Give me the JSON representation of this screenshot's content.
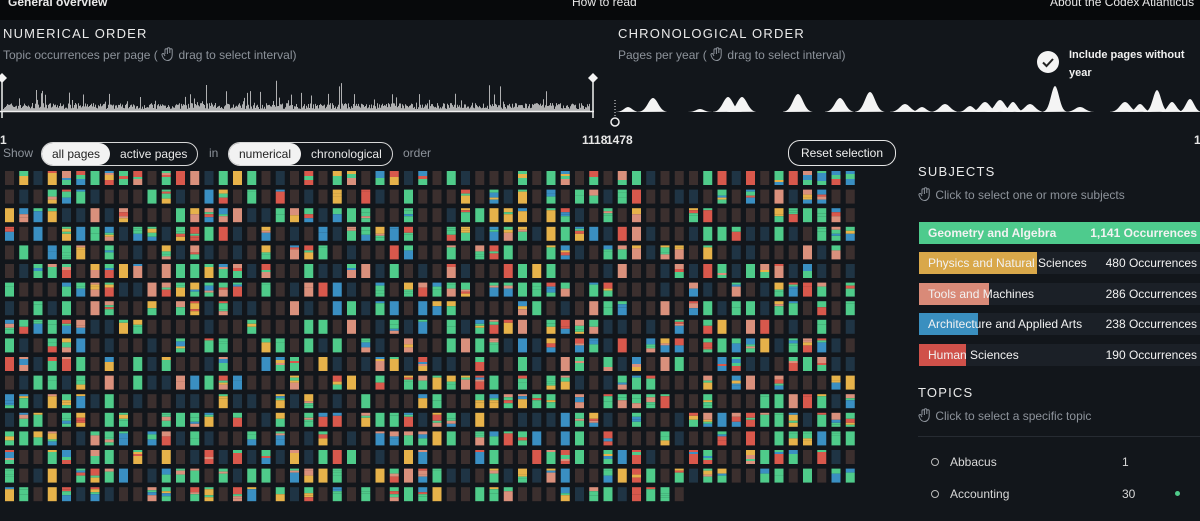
{
  "nav": {
    "items": [
      "General overview",
      "How to read",
      "About the Codex Atlanticus"
    ]
  },
  "numerical": {
    "title": "NUMERICAL ORDER",
    "hint_prefix": "Topic occurrences per page (",
    "hint": "drag to select interval)",
    "range_start": "1",
    "range_end": "1118"
  },
  "chronological": {
    "title": "CHRONOLOGICAL ORDER",
    "hint_prefix": "Pages per year (",
    "hint": "drag to select interval)",
    "range_start": "1478",
    "range_end": "1",
    "include_label": "Include pages without year"
  },
  "controls": {
    "show": "Show",
    "show_options": [
      "all pages",
      "active pages"
    ],
    "in": "in",
    "order_options": [
      "numerical",
      "chronological"
    ],
    "order": "order",
    "reset": "Reset selection"
  },
  "subjects": {
    "title": "SUBJECTS",
    "hint": "Click to select one or more subjects",
    "items": [
      {
        "name": "Geometry and Algebra",
        "occurrences": 1141,
        "label": "1,141 Occurrences",
        "color": "#4ecb8d"
      },
      {
        "name": "Physics and Natural Sciences",
        "occurrences": 480,
        "label": "480 Occurrences",
        "color": "#d9a84a"
      },
      {
        "name": "Tools and Machines",
        "occurrences": 286,
        "label": "286 Occurrences",
        "color": "#d98a78"
      },
      {
        "name": "Architecture and Applied Arts",
        "occurrences": 238,
        "label": "238 Occurrences",
        "color": "#3a8fbf"
      },
      {
        "name": "Human Sciences",
        "occurrences": 190,
        "label": "190 Occurrences",
        "color": "#d0514a"
      }
    ]
  },
  "topics": {
    "title": "TOPICS",
    "hint": "Click to select a specific topic",
    "items": [
      {
        "name": "Abbacus",
        "count": 1
      },
      {
        "name": "Accounting",
        "count": 30
      }
    ]
  }
}
